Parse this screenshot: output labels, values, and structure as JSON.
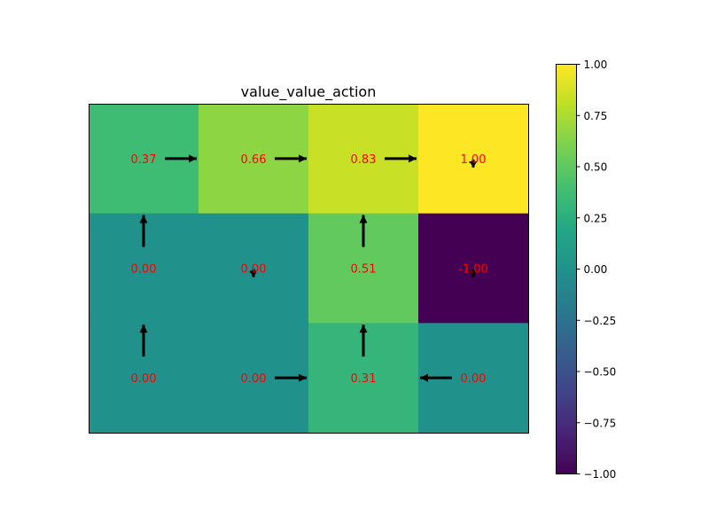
{
  "chart_data": {
    "type": "heatmap",
    "title": "value_value_action",
    "rows": 3,
    "cols": 4,
    "values": [
      [
        0.37,
        0.66,
        0.83,
        1.0
      ],
      [
        0.0,
        0.0,
        0.51,
        -1.0
      ],
      [
        0.0,
        0.0,
        0.31,
        0.0
      ]
    ],
    "labels": [
      [
        "0.37",
        "0.66",
        "0.83",
        "1.00"
      ],
      [
        "0.00",
        "0.00",
        "0.51",
        "-1.00"
      ],
      [
        "0.00",
        "0.00",
        "0.31",
        "0.00"
      ]
    ],
    "actions": [
      [
        "right",
        "right",
        "right",
        "down"
      ],
      [
        "up",
        "down",
        "up",
        "down"
      ],
      [
        "up",
        "right",
        "up",
        "left"
      ]
    ],
    "colormap": "viridis",
    "vmin": -1.0,
    "vmax": 1.0,
    "colorbar_ticks": [
      "1.00",
      "0.75",
      "0.50",
      "0.25",
      "0.00",
      "−0.25",
      "−0.50",
      "−0.75",
      "−1.00"
    ],
    "colorbar_tick_values": [
      1.0,
      0.75,
      0.5,
      0.25,
      0.0,
      -0.25,
      -0.5,
      -0.75,
      -1.0
    ],
    "label_color": "#ff0000",
    "arrow_color": "#000000",
    "axes_visible": false
  }
}
